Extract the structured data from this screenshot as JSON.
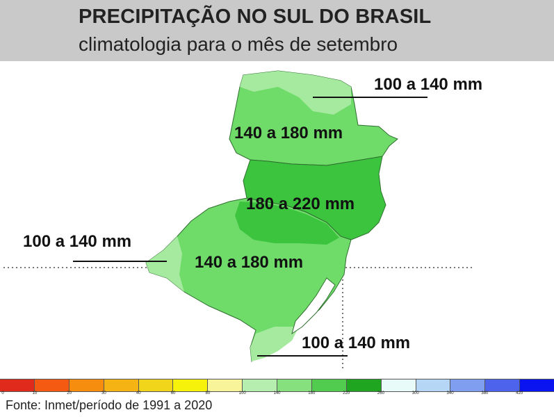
{
  "header": {
    "title": "PRECIPITAÇÃO NO SUL DO BRASIL",
    "subtitle": "climatologia para o mês de setembro"
  },
  "map": {
    "regions": [
      {
        "name": "norte-parana",
        "range": "100 a 140 mm",
        "color": "#a6eaa0"
      },
      {
        "name": "parana",
        "range": "140 a 180 mm",
        "color": "#6fdc6a"
      },
      {
        "name": "santa-catarina-oeste",
        "range": "180 a 220 mm",
        "color": "#3cc43f"
      },
      {
        "name": "rio-grande-do-sul",
        "range": "140 a 180 mm",
        "color": "#6fdc6a"
      },
      {
        "name": "rs-oeste",
        "range": "100 a 140 mm",
        "color": "#a6eaa0"
      },
      {
        "name": "rs-litoral-sul",
        "range": "100 a 140 mm",
        "color": "#a6eaa0"
      }
    ],
    "labels": {
      "ne": "100 a 140 mm",
      "parana": "140 a 180 mm",
      "sc": "180 a 220 mm",
      "west": "100 a 140 mm",
      "rs": "140 a 180 mm",
      "south": "100 a 140 mm"
    }
  },
  "legend": {
    "colors": [
      "#e02b1c",
      "#f45a12",
      "#f78d0e",
      "#f5b414",
      "#f1d51a",
      "#f6f20a",
      "#f7f49a",
      "#b6eeb0",
      "#86e07e",
      "#52cc4f",
      "#1fa51f",
      "#e8fbf8",
      "#b6d6f5",
      "#7f9ef0",
      "#4d63ec",
      "#0a14f0"
    ],
    "ticks": [
      "0",
      "10",
      "20",
      "30",
      "40",
      "60",
      "80",
      "100",
      "140",
      "180",
      "220",
      "260",
      "300",
      "340",
      "380",
      "420"
    ]
  },
  "source": "Fonte: Inmet/período de 1991 a 2020"
}
